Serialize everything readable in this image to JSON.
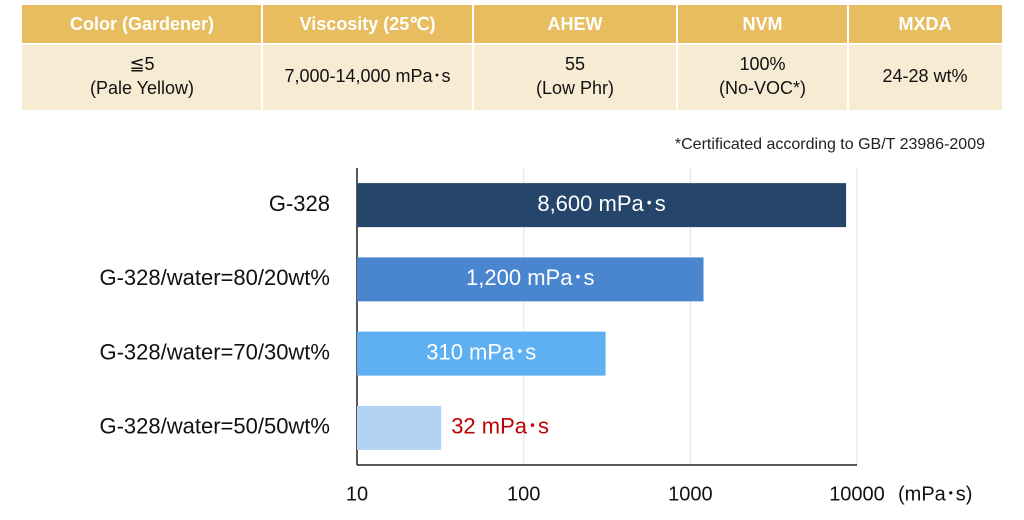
{
  "table": {
    "header": [
      "Color (Gardener)",
      "Viscosity (25℃)",
      "AHEW",
      "NVM",
      "MXDA"
    ],
    "rows": [
      [
        [
          "≦5",
          "(Pale Yellow)"
        ],
        [
          "7,000-14,000 mPa･s"
        ],
        [
          "55",
          "(Low Phr)"
        ],
        [
          "100%",
          "(No-VOC*)"
        ],
        [
          "24-28 wt%"
        ]
      ]
    ]
  },
  "note": "*Certificated according to GB/T 23986-2009",
  "chart_data": {
    "type": "bar",
    "orientation": "horizontal",
    "categories": [
      "G-328",
      "G-328/water=80/20wt%",
      "G-328/water=70/30wt%",
      "G-328/water=50/50wt%"
    ],
    "values": [
      8600,
      1200,
      310,
      32
    ],
    "value_labels": [
      "8,600 mPa･s",
      "1,200 mPa･s",
      "310 mPa･s",
      "32 mPa･s"
    ],
    "colors": [
      "#26456a",
      "#4a86d0",
      "#5eb0f2",
      "#b3d3f5"
    ],
    "value_label_colors": [
      "#ffffff",
      "#ffffff",
      "#ffffff",
      "#c00000"
    ],
    "xlim": [
      10,
      10000
    ],
    "xticks": [
      10,
      100,
      1000,
      10000
    ],
    "xscale": "log",
    "xlabel": "(mPa･s)",
    "grid": true
  }
}
